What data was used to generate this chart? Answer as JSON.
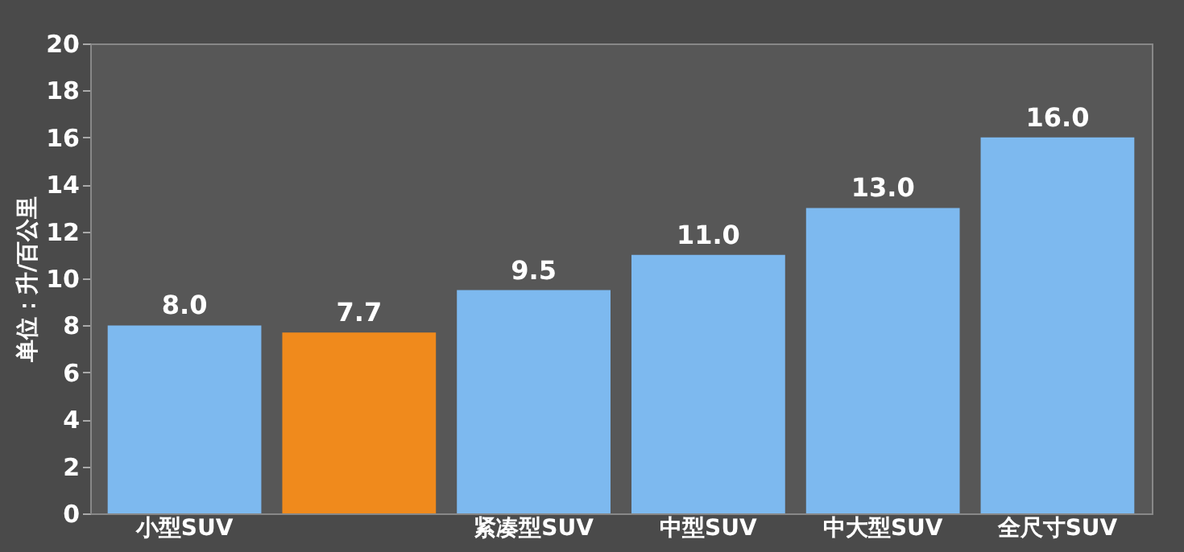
{
  "chart_data": {
    "type": "bar",
    "ylabel": "单位：升/百公里",
    "categories": [
      "小型SUV",
      null,
      "紧凑型SUV",
      "中型SUV",
      "中大型SUV",
      "全尺寸SUV"
    ],
    "values": [
      8.0,
      7.7,
      9.5,
      11.0,
      13.0,
      16.0
    ],
    "colors": [
      "#7db9ef",
      "#f08a1c",
      "#7db9ef",
      "#7db9ef",
      "#7db9ef",
      "#7db9ef"
    ],
    "value_labels": [
      "8.0",
      "7.7",
      "9.5",
      "11.0",
      "13.0",
      "16.0"
    ],
    "ylim": [
      0,
      20
    ],
    "yticks": [
      0,
      2,
      4,
      6,
      8,
      10,
      12,
      14,
      16,
      18,
      20
    ],
    "grid": false
  }
}
